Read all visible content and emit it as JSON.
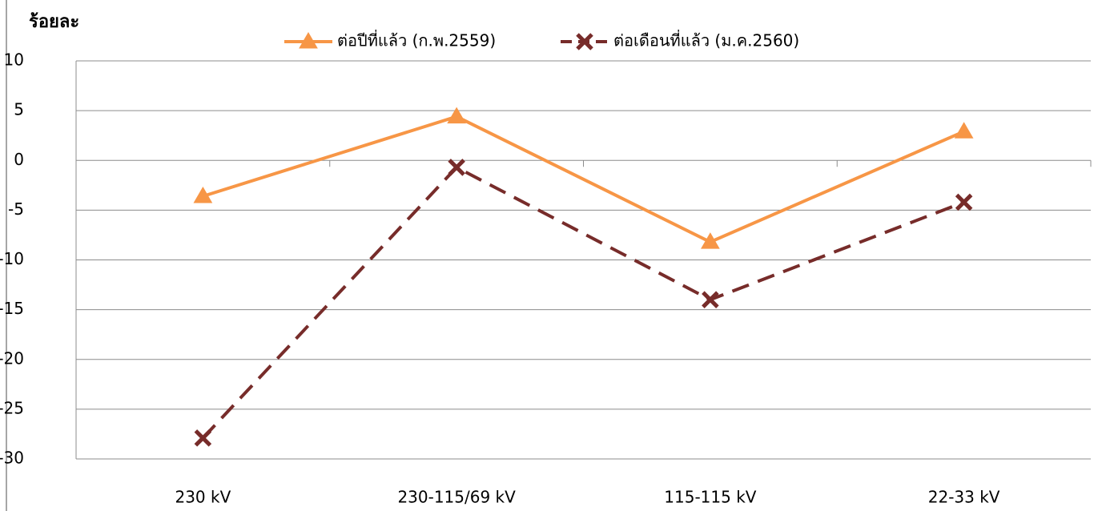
{
  "chart_data": {
    "type": "line",
    "y_label": "ร้อยละ",
    "categories": [
      "230 kV",
      "230-115/69 kV",
      "115-115 kV",
      "22-33 kV"
    ],
    "series": [
      {
        "name": "ต่อปีที่แล้ว (ก.พ.2559)",
        "color": "#f79646",
        "marker": "triangle",
        "dash": "solid",
        "values": [
          -3.6,
          4.4,
          -8.2,
          2.9
        ]
      },
      {
        "name": "ต่อเดือนที่แล้ว (ม.ค.2560)",
        "color": "#772c2a",
        "marker": "x",
        "dash": "dashed",
        "values": [
          -27.9,
          -0.7,
          -14.0,
          -4.2
        ]
      }
    ],
    "ylim": [
      -30,
      10
    ],
    "yticks": [
      10,
      5,
      0,
      -5,
      -10,
      -15,
      -20,
      -25,
      -30
    ],
    "grid": true,
    "legend": "top"
  }
}
